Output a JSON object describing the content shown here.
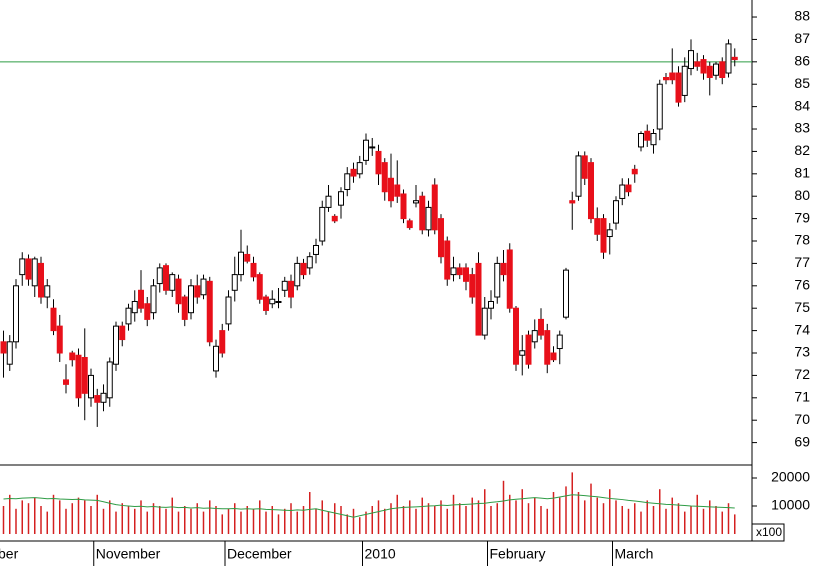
{
  "chart_data": {
    "type": "candlestick",
    "categories": [
      "ber",
      null,
      null,
      null,
      null,
      null,
      null,
      null,
      null,
      null,
      null,
      null,
      null,
      null,
      null,
      "November",
      null,
      null,
      null,
      null,
      null,
      null,
      null,
      null,
      null,
      null,
      null,
      null,
      null,
      null,
      null,
      null,
      null,
      null,
      null,
      null,
      "December",
      null,
      null,
      null,
      null,
      null,
      null,
      null,
      null,
      null,
      null,
      null,
      null,
      null,
      null,
      null,
      null,
      null,
      null,
      null,
      null,
      null,
      "2010",
      null,
      null,
      null,
      null,
      null,
      null,
      null,
      null,
      null,
      null,
      null,
      null,
      null,
      null,
      null,
      null,
      null,
      null,
      null,
      "February",
      null,
      null,
      null,
      null,
      null,
      null,
      null,
      null,
      null,
      null,
      null,
      null,
      null,
      null,
      null,
      null,
      null,
      null,
      null,
      "March",
      null,
      null,
      null,
      null,
      null,
      null,
      null,
      null,
      null,
      null,
      null,
      null,
      null,
      null,
      null,
      null,
      null,
      null,
      null
    ],
    "ohlc": [
      [
        73.5,
        74.0,
        71.9,
        73.0
      ],
      [
        72.5,
        73.8,
        72.2,
        73.5
      ],
      [
        73.5,
        76.3,
        73.2,
        76.0
      ],
      [
        76.5,
        77.5,
        76.0,
        77.2
      ],
      [
        77.2,
        77.4,
        76.0,
        76.3
      ],
      [
        76.0,
        77.3,
        75.5,
        77.2
      ],
      [
        77.0,
        77.3,
        75.2,
        75.5
      ],
      [
        75.5,
        76.3,
        75.0,
        76.0
      ],
      [
        75.0,
        75.4,
        73.8,
        74.0
      ],
      [
        74.2,
        74.7,
        72.6,
        73.0
      ],
      [
        71.8,
        72.5,
        71.2,
        71.6
      ],
      [
        73.0,
        73.1,
        72.4,
        72.7
      ],
      [
        72.9,
        73.2,
        70.6,
        71.0
      ],
      [
        72.8,
        74.1,
        70.0,
        71.2
      ],
      [
        71.0,
        72.3,
        70.6,
        72.0
      ],
      [
        71.1,
        71.4,
        69.7,
        70.8
      ],
      [
        70.8,
        71.6,
        70.4,
        71.2
      ],
      [
        71.0,
        72.8,
        70.6,
        72.6
      ],
      [
        72.5,
        74.4,
        72.2,
        74.2
      ],
      [
        74.2,
        74.4,
        73.3,
        73.6
      ],
      [
        74.3,
        75.2,
        74.0,
        75.0
      ],
      [
        74.8,
        75.8,
        74.4,
        75.3
      ],
      [
        75.8,
        76.7,
        74.8,
        75.0
      ],
      [
        75.2,
        75.5,
        74.2,
        74.5
      ],
      [
        74.8,
        76.3,
        74.5,
        76.0
      ],
      [
        76.1,
        77.0,
        75.7,
        76.8
      ],
      [
        76.9,
        77.0,
        75.6,
        75.8
      ],
      [
        75.8,
        76.6,
        75.5,
        76.5
      ],
      [
        76.3,
        76.5,
        74.8,
        75.2
      ],
      [
        75.5,
        75.6,
        74.2,
        74.5
      ],
      [
        74.8,
        76.3,
        74.5,
        76.0
      ],
      [
        76.0,
        76.5,
        75.2,
        75.5
      ],
      [
        75.6,
        76.5,
        75.4,
        76.3
      ],
      [
        76.2,
        76.4,
        73.3,
        73.5
      ],
      [
        72.2,
        73.6,
        71.9,
        73.3
      ],
      [
        74.0,
        74.3,
        72.8,
        73.0
      ],
      [
        74.3,
        75.8,
        74.0,
        75.5
      ],
      [
        75.8,
        77.3,
        75.3,
        76.5
      ],
      [
        76.5,
        78.5,
        76.2,
        77.5
      ],
      [
        77.4,
        77.8,
        77.0,
        77.1
      ],
      [
        77.0,
        77.3,
        76.2,
        76.4
      ],
      [
        76.5,
        76.6,
        75.2,
        75.4
      ],
      [
        75.5,
        75.6,
        74.7,
        74.9
      ],
      [
        75.2,
        75.8,
        75.0,
        75.4
      ],
      [
        75.3,
        75.9,
        75.0,
        75.3
      ],
      [
        75.8,
        76.4,
        75.5,
        76.2
      ],
      [
        76.2,
        76.5,
        75.0,
        75.5
      ],
      [
        76.0,
        77.3,
        75.8,
        77.0
      ],
      [
        77.0,
        77.2,
        76.3,
        76.5
      ],
      [
        76.8,
        77.5,
        76.5,
        77.3
      ],
      [
        77.4,
        78.1,
        77.0,
        77.8
      ],
      [
        78.0,
        79.8,
        77.8,
        79.5
      ],
      [
        79.5,
        80.5,
        79.3,
        80.0
      ],
      [
        79.1,
        79.2,
        78.8,
        78.9
      ],
      [
        79.6,
        80.4,
        79.0,
        80.2
      ],
      [
        80.3,
        81.3,
        80.0,
        81.0
      ],
      [
        81.2,
        81.5,
        80.6,
        80.9
      ],
      [
        81.0,
        81.8,
        80.8,
        81.5
      ],
      [
        81.6,
        82.8,
        81.4,
        82.5
      ],
      [
        82.2,
        82.6,
        81.8,
        82.2
      ],
      [
        82.0,
        82.3,
        80.5,
        81.0
      ],
      [
        81.5,
        81.7,
        79.8,
        80.2
      ],
      [
        80.8,
        81.9,
        79.5,
        79.8
      ],
      [
        80.5,
        81.6,
        79.7,
        80.0
      ],
      [
        80.1,
        80.3,
        78.8,
        79.0
      ],
      [
        78.9,
        79.0,
        78.5,
        78.6
      ],
      [
        79.7,
        80.5,
        79.5,
        79.8
      ],
      [
        80.0,
        80.2,
        78.3,
        78.5
      ],
      [
        78.5,
        79.8,
        78.2,
        79.5
      ],
      [
        80.5,
        80.8,
        78.3,
        78.5
      ],
      [
        79.0,
        79.2,
        77.0,
        77.3
      ],
      [
        78.0,
        78.2,
        76.0,
        76.3
      ],
      [
        76.5,
        77.3,
        76.2,
        76.8
      ],
      [
        76.8,
        77.0,
        76.3,
        76.5
      ],
      [
        76.8,
        77.0,
        75.8,
        76.2
      ],
      [
        76.5,
        76.8,
        75.2,
        75.5
      ],
      [
        77.0,
        77.5,
        73.8,
        73.8
      ],
      [
        73.8,
        75.5,
        73.6,
        75.0
      ],
      [
        75.0,
        75.8,
        74.5,
        75.3
      ],
      [
        75.5,
        77.3,
        75.2,
        77.0
      ],
      [
        77.0,
        77.6,
        76.2,
        76.5
      ],
      [
        77.6,
        77.9,
        74.8,
        75.0
      ],
      [
        75.0,
        75.1,
        72.2,
        72.5
      ],
      [
        72.9,
        73.8,
        72.0,
        73.1
      ],
      [
        73.8,
        74.0,
        72.3,
        72.5
      ],
      [
        73.5,
        74.5,
        73.2,
        74.0
      ],
      [
        74.5,
        75.0,
        73.6,
        73.8
      ],
      [
        74.0,
        74.3,
        72.1,
        72.5
      ],
      [
        73.0,
        73.3,
        72.6,
        72.7
      ],
      [
        73.2,
        74.0,
        72.5,
        73.8
      ],
      [
        74.6,
        76.8,
        74.5,
        76.7
      ],
      [
        79.8,
        80.2,
        78.5,
        79.7
      ],
      [
        80.0,
        82.0,
        79.8,
        81.8
      ],
      [
        81.8,
        82.0,
        80.5,
        80.8
      ],
      [
        81.5,
        81.7,
        78.8,
        79.0
      ],
      [
        79.0,
        79.5,
        78.0,
        78.3
      ],
      [
        79.0,
        79.2,
        77.2,
        77.5
      ],
      [
        78.2,
        78.8,
        77.4,
        78.5
      ],
      [
        78.8,
        80.0,
        78.5,
        79.8
      ],
      [
        79.9,
        80.8,
        79.6,
        80.5
      ],
      [
        80.5,
        80.8,
        80.0,
        80.2
      ],
      [
        81.2,
        81.4,
        80.6,
        81.0
      ],
      [
        82.2,
        82.9,
        82.0,
        82.8
      ],
      [
        82.9,
        83.2,
        82.2,
        82.5
      ],
      [
        82.3,
        83.0,
        81.9,
        82.8
      ],
      [
        83.0,
        85.2,
        82.5,
        85.0
      ],
      [
        85.3,
        85.5,
        85.0,
        85.2
      ],
      [
        85.5,
        86.6,
        85.0,
        85.2
      ],
      [
        85.5,
        85.8,
        84.0,
        84.2
      ],
      [
        84.5,
        86.2,
        84.2,
        85.8
      ],
      [
        85.7,
        87.0,
        85.4,
        86.5
      ],
      [
        86.0,
        86.4,
        85.6,
        85.8
      ],
      [
        86.1,
        86.3,
        85.2,
        85.5
      ],
      [
        85.8,
        86.0,
        84.5,
        85.3
      ],
      [
        85.4,
        86.0,
        85.2,
        85.9
      ],
      [
        86.0,
        86.2,
        85.0,
        85.3
      ],
      [
        85.5,
        87.0,
        85.3,
        86.8
      ],
      [
        86.2,
        86.6,
        85.8,
        86.1
      ]
    ],
    "up_color": "#ffffff",
    "down_color": "#e8101a",
    "ylim": [
      68,
      88.76
    ],
    "yticks": [
      69,
      70,
      71,
      72,
      73,
      74,
      75,
      76,
      77,
      78,
      79,
      80,
      81,
      82,
      83,
      84,
      85,
      86,
      87,
      88
    ],
    "reference_line": {
      "value": 86,
      "color": "#2e9c45"
    },
    "volume": [
      10000,
      14000,
      9000,
      12000,
      11000,
      13000,
      10000,
      8000,
      14000,
      12000,
      9000,
      11000,
      13000,
      12000,
      10000,
      14000,
      9000,
      12000,
      8000,
      11000,
      10000,
      9000,
      12000,
      8000,
      11000,
      10000,
      9000,
      13000,
      8000,
      10000,
      9000,
      11000,
      8000,
      12000,
      10000,
      7000,
      9000,
      11000,
      8000,
      10000,
      9000,
      12000,
      8000,
      10000,
      7000,
      9000,
      11000,
      8000,
      10000,
      15000,
      9000,
      12000,
      8000,
      11000,
      10000,
      7000,
      9000,
      6000,
      8000,
      10000,
      12000,
      9000,
      11000,
      14000,
      10000,
      12000,
      9000,
      13000,
      11000,
      10000,
      12000,
      9000,
      14000,
      11000,
      10000,
      13000,
      12000,
      16000,
      10000,
      11000,
      19000,
      14000,
      12000,
      16000,
      11000,
      13000,
      10000,
      9000,
      15000,
      13000,
      17000,
      22000,
      15000,
      12000,
      18000,
      13000,
      11000,
      16000,
      12000,
      10000,
      9000,
      11000,
      8000,
      12000,
      10000,
      16000,
      9000,
      13000,
      11000,
      8000,
      10000,
      14000,
      9000,
      12000,
      10000,
      8000,
      11000,
      7000
    ],
    "volume_color": "#d42020",
    "volume_avg": [
      12500,
      12700,
      12600,
      12800,
      12900,
      13000,
      12800,
      12600,
      12700,
      12500,
      12400,
      12300,
      12400,
      12200,
      12100,
      12000,
      11500,
      11000,
      10500,
      10200,
      10000,
      9800,
      9900,
      9700,
      9800,
      9600,
      9500,
      9700,
      9400,
      9500,
      9300,
      9400,
      9200,
      9300,
      9100,
      9000,
      9000,
      9100,
      8900,
      9000,
      8900,
      9000,
      8800,
      8700,
      8600,
      8500,
      8400,
      8600,
      8500,
      8800,
      9000,
      8500,
      8000,
      7500,
      7000,
      6500,
      6000,
      6500,
      7000,
      7500,
      8000,
      8500,
      9000,
      9300,
      9500,
      9600,
      9700,
      9800,
      10000,
      10100,
      10300,
      10200,
      10400,
      10500,
      10600,
      10700,
      10900,
      11000,
      11300,
      11500,
      11800,
      12200,
      12400,
      12600,
      12800,
      13000,
      12800,
      12600,
      12800,
      13200,
      13600,
      14000,
      13900,
      13700,
      13500,
      13300,
      13000,
      12700,
      12500,
      12300,
      12000,
      11800,
      11500,
      11200,
      11000,
      10800,
      10600,
      10500,
      10300,
      10200,
      10000,
      9900,
      9800,
      9700,
      9600,
      9500,
      9400,
      9300
    ],
    "volume_avg_color": "#2e9c45",
    "volume_ylim": [
      0,
      24000
    ],
    "volume_ticks": [
      10000,
      20000
    ],
    "volume_unit": "x100"
  }
}
